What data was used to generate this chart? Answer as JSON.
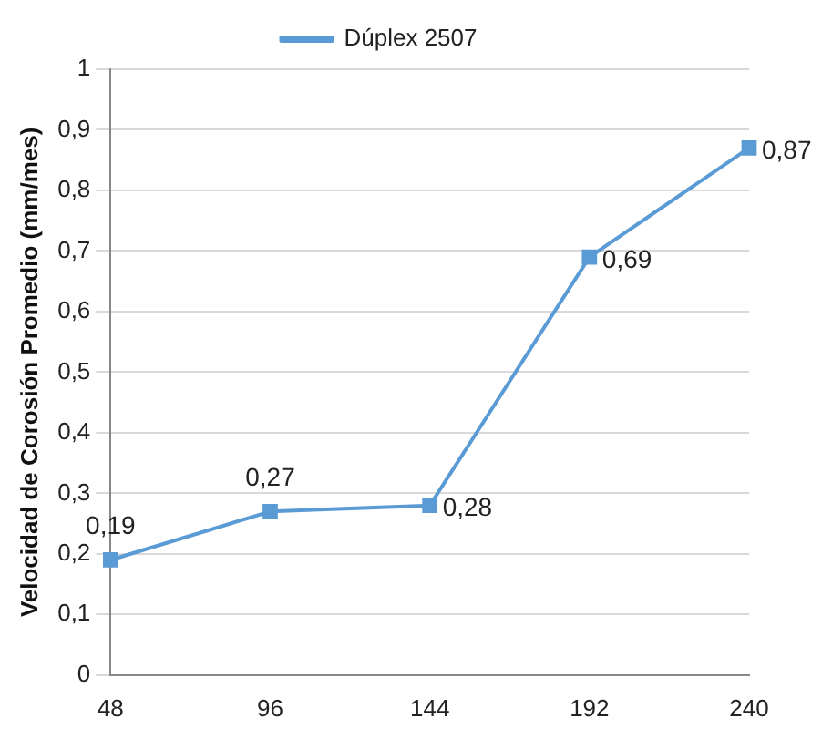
{
  "chart_data": {
    "type": "line",
    "ylabel": "Velocidad de Corosión Promedio (mm/mes)",
    "categories": [
      "48",
      "96",
      "144",
      "192",
      "240"
    ],
    "series": [
      {
        "name": "Dúplex 2507",
        "color": "#5b9bd5",
        "values": [
          0.19,
          0.27,
          0.28,
          0.69,
          0.87
        ],
        "value_labels": [
          "0,19",
          "0,27",
          "0,28",
          "0,69",
          "0,87"
        ]
      }
    ],
    "ylim": [
      0,
      1
    ],
    "yticks": [
      {
        "value": 0,
        "label": "0"
      },
      {
        "value": 0.1,
        "label": "0,1"
      },
      {
        "value": 0.2,
        "label": "0,2"
      },
      {
        "value": 0.3,
        "label": "0,3"
      },
      {
        "value": 0.4,
        "label": "0,4"
      },
      {
        "value": 0.5,
        "label": "0,5"
      },
      {
        "value": 0.6,
        "label": "0,6"
      },
      {
        "value": 0.7,
        "label": "0,7"
      },
      {
        "value": 0.8,
        "label": "0,8"
      },
      {
        "value": 0.9,
        "label": "0,9"
      },
      {
        "value": 1,
        "label": "1"
      }
    ],
    "grid": "y",
    "legend": "top",
    "marker": "square",
    "line_style": "solid"
  }
}
